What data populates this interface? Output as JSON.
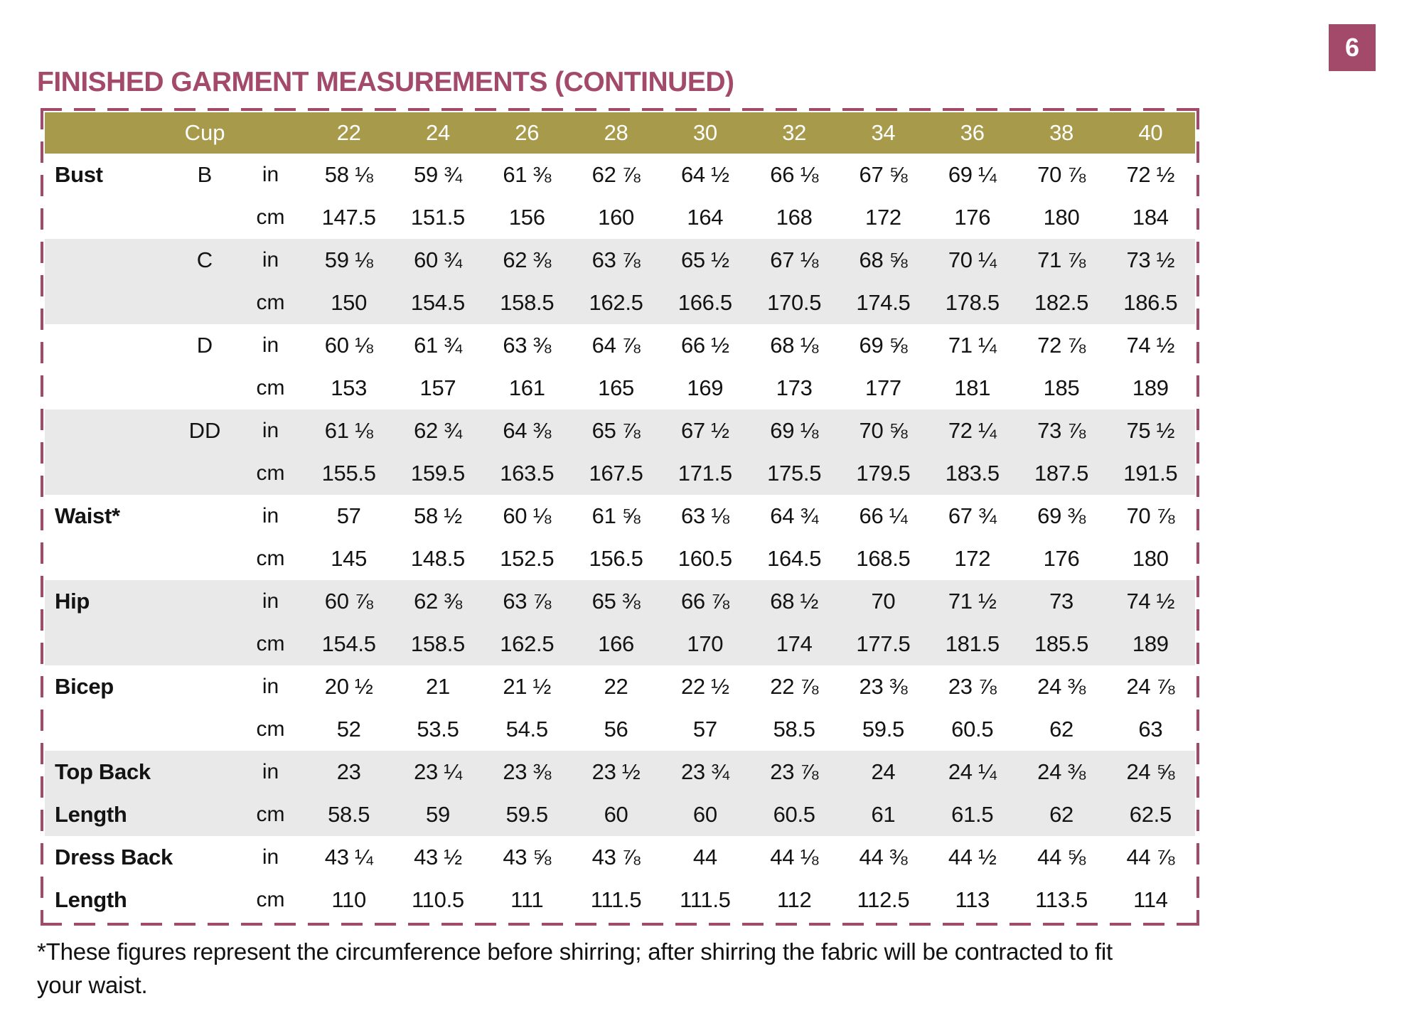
{
  "page": {
    "number": "6",
    "title": "FINISHED GARMENT MEASUREMENTS (CONTINUED)",
    "footnote_line1": "*These figures represent the circumference before shirring; after shirring the fabric will be contracted to fit",
    "footnote_line2": "your waist."
  },
  "colors": {
    "accent": "#a34a6b",
    "header_bg": "#a89a4b",
    "row_shaded": "#e9e9e9",
    "text": "#131313",
    "header_text": "#ffffff"
  },
  "table": {
    "cup_header": "Cup",
    "unit_in": "in",
    "unit_cm": "cm",
    "sizes": [
      "22",
      "24",
      "26",
      "28",
      "30",
      "32",
      "34",
      "36",
      "38",
      "40"
    ],
    "groups": [
      {
        "label": "Bust",
        "label2": "",
        "cup": "B",
        "shaded": false,
        "in": [
          "58 ⅛",
          "59 ¾",
          "61 ⅜",
          "62 ⅞",
          "64 ½",
          "66 ⅛",
          "67 ⅝",
          "69 ¼",
          "70 ⅞",
          "72 ½"
        ],
        "cm": [
          "147.5",
          "151.5",
          "156",
          "160",
          "164",
          "168",
          "172",
          "176",
          "180",
          "184"
        ]
      },
      {
        "label": "",
        "label2": "",
        "cup": "C",
        "shaded": true,
        "in": [
          "59 ⅛",
          "60 ¾",
          "62 ⅜",
          "63 ⅞",
          "65 ½",
          "67 ⅛",
          "68 ⅝",
          "70 ¼",
          "71 ⅞",
          "73 ½"
        ],
        "cm": [
          "150",
          "154.5",
          "158.5",
          "162.5",
          "166.5",
          "170.5",
          "174.5",
          "178.5",
          "182.5",
          "186.5"
        ]
      },
      {
        "label": "",
        "label2": "",
        "cup": "D",
        "shaded": false,
        "in": [
          "60 ⅛",
          "61 ¾",
          "63 ⅜",
          "64 ⅞",
          "66 ½",
          "68 ⅛",
          "69 ⅝",
          "71 ¼",
          "72 ⅞",
          "74 ½"
        ],
        "cm": [
          "153",
          "157",
          "161",
          "165",
          "169",
          "173",
          "177",
          "181",
          "185",
          "189"
        ]
      },
      {
        "label": "",
        "label2": "",
        "cup": "DD",
        "shaded": true,
        "in": [
          "61 ⅛",
          "62 ¾",
          "64 ⅜",
          "65 ⅞",
          "67 ½",
          "69 ⅛",
          "70 ⅝",
          "72 ¼",
          "73 ⅞",
          "75 ½"
        ],
        "cm": [
          "155.5",
          "159.5",
          "163.5",
          "167.5",
          "171.5",
          "175.5",
          "179.5",
          "183.5",
          "187.5",
          "191.5"
        ]
      },
      {
        "label": "Waist*",
        "label2": "",
        "cup": "",
        "shaded": false,
        "in": [
          "57",
          "58 ½",
          "60 ⅛",
          "61 ⅝",
          "63 ⅛",
          "64 ¾",
          "66 ¼",
          "67 ¾",
          "69 ⅜",
          "70 ⅞"
        ],
        "cm": [
          "145",
          "148.5",
          "152.5",
          "156.5",
          "160.5",
          "164.5",
          "168.5",
          "172",
          "176",
          "180"
        ]
      },
      {
        "label": "Hip",
        "label2": "",
        "cup": "",
        "shaded": true,
        "in": [
          "60 ⅞",
          "62 ⅜",
          "63 ⅞",
          "65 ⅜",
          "66 ⅞",
          "68 ½",
          "70",
          "71 ½",
          "73",
          "74 ½"
        ],
        "cm": [
          "154.5",
          "158.5",
          "162.5",
          "166",
          "170",
          "174",
          "177.5",
          "181.5",
          "185.5",
          "189"
        ]
      },
      {
        "label": "Bicep",
        "label2": "",
        "cup": "",
        "shaded": false,
        "in": [
          "20 ½",
          "21",
          "21 ½",
          "22",
          "22 ½",
          "22 ⅞",
          "23 ⅜",
          "23 ⅞",
          "24 ⅜",
          "24 ⅞"
        ],
        "cm": [
          "52",
          "53.5",
          "54.5",
          "56",
          "57",
          "58.5",
          "59.5",
          "60.5",
          "62",
          "63"
        ]
      },
      {
        "label": "Top Back",
        "label2": "Length",
        "cup": "",
        "shaded": true,
        "in": [
          "23",
          "23 ¼",
          "23 ⅜",
          "23 ½",
          "23 ¾",
          "23 ⅞",
          "24",
          "24 ¼",
          "24 ⅜",
          "24 ⅝"
        ],
        "cm": [
          "58.5",
          "59",
          "59.5",
          "60",
          "60",
          "60.5",
          "61",
          "61.5",
          "62",
          "62.5"
        ]
      },
      {
        "label": "Dress Back",
        "label2": "Length",
        "cup": "",
        "shaded": false,
        "in": [
          "43 ¼",
          "43 ½",
          "43 ⅝",
          "43 ⅞",
          "44",
          "44 ⅛",
          "44 ⅜",
          "44 ½",
          "44 ⅝",
          "44 ⅞"
        ],
        "cm": [
          "110",
          "110.5",
          "111",
          "111.5",
          "111.5",
          "112",
          "112.5",
          "113",
          "113.5",
          "114"
        ]
      }
    ]
  }
}
